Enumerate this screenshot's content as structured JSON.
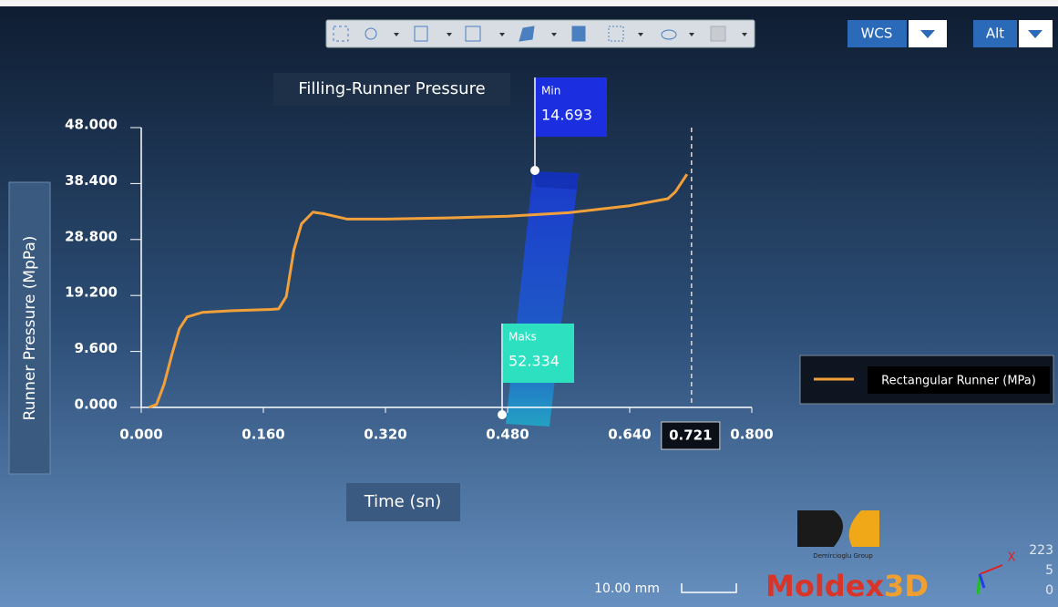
{
  "toolbar": {
    "coordinate_system": "WCS",
    "view": "Alt"
  },
  "chart_data": {
    "type": "line",
    "title": "Filling-Runner Pressure",
    "x_label": "Time (sn)",
    "y_label": "Runner Pressure (MpPa)",
    "x": [
      0.01,
      0.02,
      0.03,
      0.04,
      0.05,
      0.06,
      0.08,
      0.12,
      0.17,
      0.18,
      0.19,
      0.2,
      0.21,
      0.225,
      0.24,
      0.27,
      0.32,
      0.4,
      0.48,
      0.56,
      0.64,
      0.69,
      0.7,
      0.71,
      0.715
    ],
    "series": [
      {
        "name": "Rectangular Runner (MPa)",
        "color": "#f2a03a",
        "values": [
          0,
          0.5,
          4,
          9,
          13.5,
          15.5,
          16.3,
          16.6,
          16.8,
          16.9,
          19,
          27,
          31.5,
          33.5,
          33.2,
          32.3,
          32.3,
          32.5,
          32.8,
          33.4,
          34.6,
          35.8,
          37,
          39,
          40
        ]
      }
    ],
    "xlim": [
      0,
      0.8
    ],
    "ylim": [
      0,
      48
    ],
    "xticks": [
      {
        "value": 0,
        "label": "0.000"
      },
      {
        "value": 0.16,
        "label": "0.160"
      },
      {
        "value": 0.32,
        "label": "0.320"
      },
      {
        "value": 0.48,
        "label": "0.480"
      },
      {
        "value": 0.64,
        "label": "0.640"
      },
      {
        "value": 0.8,
        "label": "0.800"
      }
    ],
    "yticks": [
      {
        "value": 0,
        "label": "0.000"
      },
      {
        "value": 9.6,
        "label": "9.600"
      },
      {
        "value": 19.2,
        "label": "19.200"
      },
      {
        "value": 28.8,
        "label": "28.800"
      },
      {
        "value": 38.4,
        "label": "38.400"
      },
      {
        "value": 48,
        "label": "48.000"
      }
    ],
    "cursor_x": 0.721,
    "annotations": [
      {
        "label": "Min",
        "value": 14.693
      },
      {
        "label": "Maks",
        "value": 52.334
      }
    ]
  },
  "scale_bar": "10.00 mm",
  "logo": {
    "group": "Demircioglu Group",
    "brand_main": "Moldex",
    "brand_suffix": "3D"
  },
  "triad_numbers": [
    "223",
    "5",
    "0"
  ]
}
